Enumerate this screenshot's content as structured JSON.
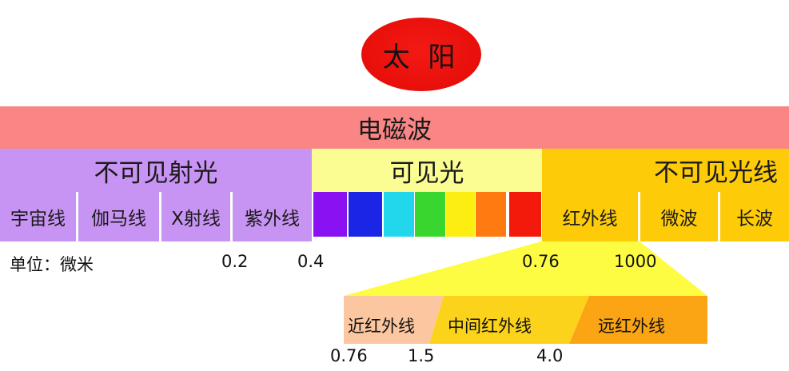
{
  "sun": {
    "label": "太 阳"
  },
  "band": {
    "label": "电磁波"
  },
  "groups": {
    "invisible_left": "不可见射光",
    "visible": "可见光",
    "invisible_right": "不可见光线"
  },
  "bands": {
    "cosmic": "宇宙线",
    "gamma": "伽马线",
    "xray": "X射线",
    "uv": "紫外线",
    "ir": "红外线",
    "microwave": "微波",
    "longwave": "长波"
  },
  "spectrum_colors": [
    "#8a11f2",
    "#1b25e6",
    "#22d6ec",
    "#3ad630",
    "#fbee10",
    "#ff7a11",
    "#f3190b"
  ],
  "scale": {
    "unit": "单位：微米",
    "ticks": [
      "0.2",
      "0.4",
      "0.76",
      "1000"
    ]
  },
  "ir_detail": {
    "near": "近红外线",
    "mid": "中间红外线",
    "far": "远红外线",
    "ticks": [
      "0.76",
      "1.5",
      "4.0"
    ]
  },
  "colors": {
    "sun": "#e80f0b",
    "em_band": "#f98585",
    "invisible": "#c894f3",
    "visible": "#fbfc92",
    "ir_orange": "#fdcb08",
    "near_ir": "#fcc6a0",
    "mid_ir": "#fbd31a",
    "far_ir": "#fca514",
    "zoom_triangle": "#fdfc42"
  }
}
